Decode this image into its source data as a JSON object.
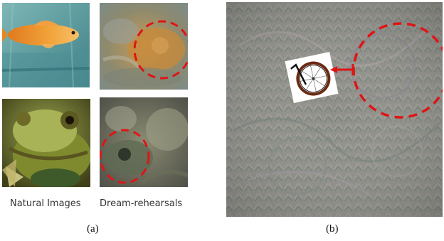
{
  "figure": {
    "left_panel": {
      "column_labels": {
        "natural": "Natural Images",
        "dream": "Dream-rehearsals"
      },
      "subcaption": "(a)"
    },
    "right_panel": {
      "subcaption": "(b)"
    }
  }
}
